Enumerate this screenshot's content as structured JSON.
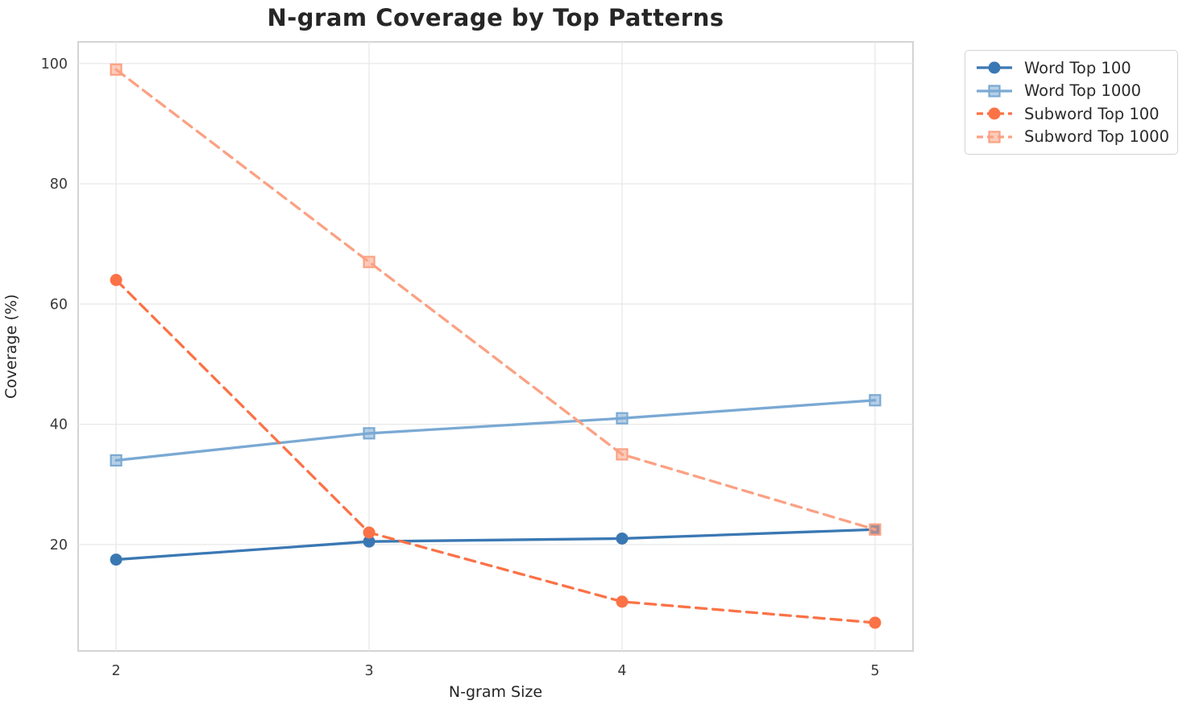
{
  "title": "N-gram Coverage by Top Patterns",
  "chart_data": {
    "type": "line",
    "title": "N-gram Coverage by Top Patterns",
    "xlabel": "N-gram Size",
    "ylabel": "Coverage (%)",
    "x": [
      2,
      3,
      4,
      5
    ],
    "xticks": [
      2,
      3,
      4,
      5
    ],
    "yticks": [
      20,
      40,
      60,
      80,
      100
    ],
    "xlim": [
      1.85,
      5.15
    ],
    "ylim": [
      2.3,
      103.6
    ],
    "grid": true,
    "legend_position": "outside-top-right",
    "series": [
      {
        "name": "Word Top 100",
        "values": [
          17.5,
          20.5,
          21,
          22.5
        ],
        "color": "#3a78b3",
        "dash": "solid",
        "marker": "circle"
      },
      {
        "name": "Word Top 1000",
        "values": [
          34,
          38.5,
          41,
          44
        ],
        "color": "#7aa9d3",
        "dash": "solid",
        "marker": "square"
      },
      {
        "name": "Subword Top 100",
        "values": [
          64,
          22,
          10.5,
          7
        ],
        "color": "#fb7247",
        "dash": "dashed",
        "marker": "circle"
      },
      {
        "name": "Subword Top 1000",
        "values": [
          99,
          67,
          35,
          22.5
        ],
        "color": "#fba183",
        "dash": "dashed",
        "marker": "square"
      }
    ]
  },
  "colors": {
    "grid": "#e8e8e8",
    "spine": "#d4d4d4",
    "plot_bg": "#ffffff",
    "tick_text": "#3a3a3a",
    "title_text": "#262626"
  }
}
